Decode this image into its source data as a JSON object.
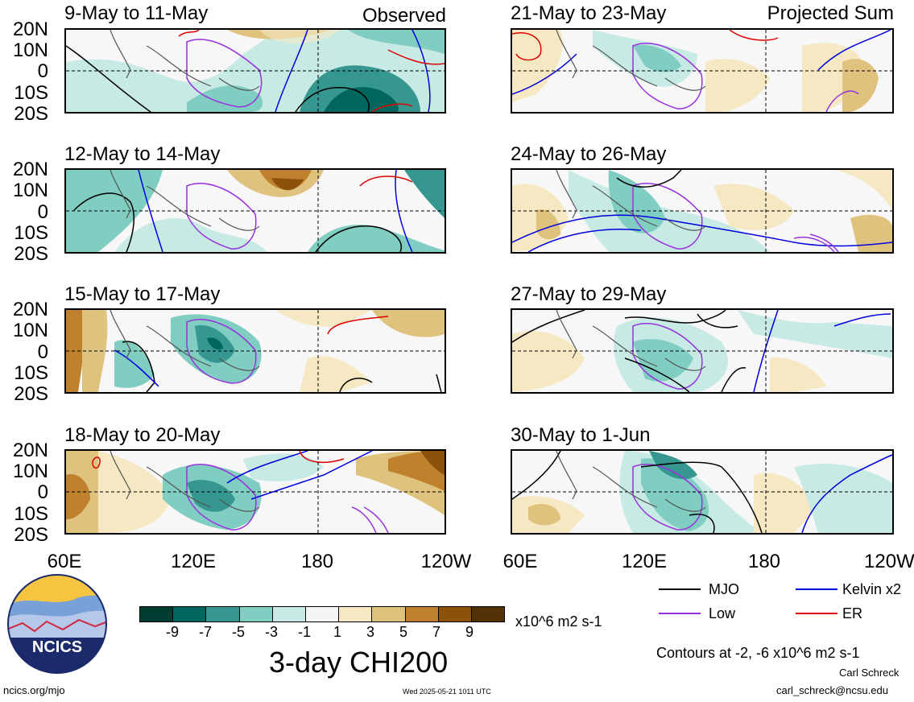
{
  "header": {
    "observed_label": "Observed",
    "projected_label": "Projected Sum"
  },
  "panels": [
    {
      "title": "9-May to 11-May",
      "column": "left"
    },
    {
      "title": "12-May to 14-May",
      "column": "left"
    },
    {
      "title": "15-May to 17-May",
      "column": "left"
    },
    {
      "title": "18-May to 20-May",
      "column": "left"
    },
    {
      "title": "21-May to 23-May",
      "column": "right"
    },
    {
      "title": "24-May to 26-May",
      "column": "right"
    },
    {
      "title": "27-May to 29-May",
      "column": "right"
    },
    {
      "title": "30-May to 1-Jun",
      "column": "right"
    }
  ],
  "axes": {
    "lat_labels": [
      "20N",
      "10N",
      "0",
      "10S",
      "20S"
    ],
    "lon_labels_left": [
      "60E",
      "120E",
      "180",
      "120W"
    ],
    "lon_labels_right": [
      "60E",
      "120E",
      "180",
      "120W"
    ]
  },
  "colorbar": {
    "ticks": [
      "-9",
      "-7",
      "-5",
      "-3",
      "-1",
      "1",
      "3",
      "5",
      "7",
      "9"
    ],
    "colors": [
      "#003c30",
      "#01665e",
      "#35978f",
      "#80cdc1",
      "#c7eae5",
      "#f5f5f5",
      "#f6e8c3",
      "#dfc27d",
      "#bf812d",
      "#8c510a",
      "#543005"
    ],
    "units": "x10^6 m2 s-1",
    "title": "3-day CHI200"
  },
  "legend": {
    "items": [
      {
        "label": "MJO",
        "color": "#000000"
      },
      {
        "label": "Kelvin x2",
        "color": "#0000dd"
      },
      {
        "label": "Low",
        "color": "#9933dd"
      },
      {
        "label": "ER",
        "color": "#dd0000"
      }
    ],
    "contours_note": "Contours at -2, -6 x10^6 m2 s-1"
  },
  "credits": {
    "logo_text": "NCICS",
    "site": "ncics.org/mjo",
    "timestamp": "Wed 2025-05-21 1011 UTC",
    "author": "Carl Schreck",
    "email": "carl_schreck@ncsu.edu"
  }
}
